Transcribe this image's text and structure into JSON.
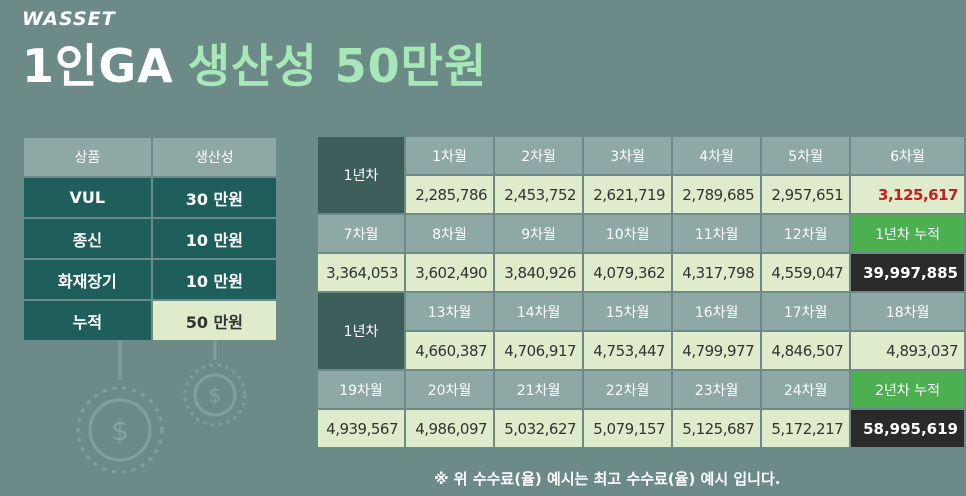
{
  "brand": "WASSET",
  "title": {
    "part1": "1인GA",
    "part2": "생산성 50만원"
  },
  "product_table": {
    "headers": [
      "상품",
      "생산성"
    ],
    "rows": [
      {
        "name": "VUL",
        "value": "30 만원"
      },
      {
        "name": "종신",
        "value": "10 만원"
      },
      {
        "name": "화재장기",
        "value": "10 만원"
      },
      {
        "name": "누적",
        "value": "50 만원"
      }
    ]
  },
  "grid": {
    "year1_label": "1년차",
    "year2_label": "1년차",
    "block1": {
      "months": [
        "1차월",
        "2차월",
        "3차월",
        "4차월",
        "5차월",
        "6차월"
      ],
      "values": [
        "2,285,786",
        "2,453,752",
        "2,621,719",
        "2,789,685",
        "2,957,651",
        "3,125,617"
      ]
    },
    "block2": {
      "months": [
        "7차월",
        "8차월",
        "9차월",
        "10차월",
        "11차월",
        "12차월"
      ],
      "values": [
        "3,364,053",
        "3,602,490",
        "3,840,926",
        "4,079,362",
        "4,317,798",
        "4,559,047"
      ],
      "cum_label": "1년차 누적",
      "cum_value": "39,997,885"
    },
    "block3": {
      "months": [
        "13차월",
        "14차월",
        "15차월",
        "16차월",
        "17차월",
        "18차월"
      ],
      "values": [
        "4,660,387",
        "4,706,917",
        "4,753,447",
        "4,799,977",
        "4,846,507",
        "4,893,037"
      ]
    },
    "block4": {
      "months": [
        "19차월",
        "20차월",
        "21차월",
        "22차월",
        "23차월",
        "24차월"
      ],
      "values": [
        "4,939,567",
        "4,986,097",
        "5,032,627",
        "5,079,157",
        "5,125,687",
        "5,172,217"
      ],
      "cum_label": "2년차 누적",
      "cum_value": "58,995,619"
    }
  },
  "note": "※ 위 수수료(율) 예시는 최고 수수료(율) 예시 입니다.",
  "colors": {
    "background": "#6b8a88",
    "header": "#8ea8a6",
    "dark": "#1e5f5b",
    "value": "#dfeccb",
    "accent": "#4caf50"
  }
}
